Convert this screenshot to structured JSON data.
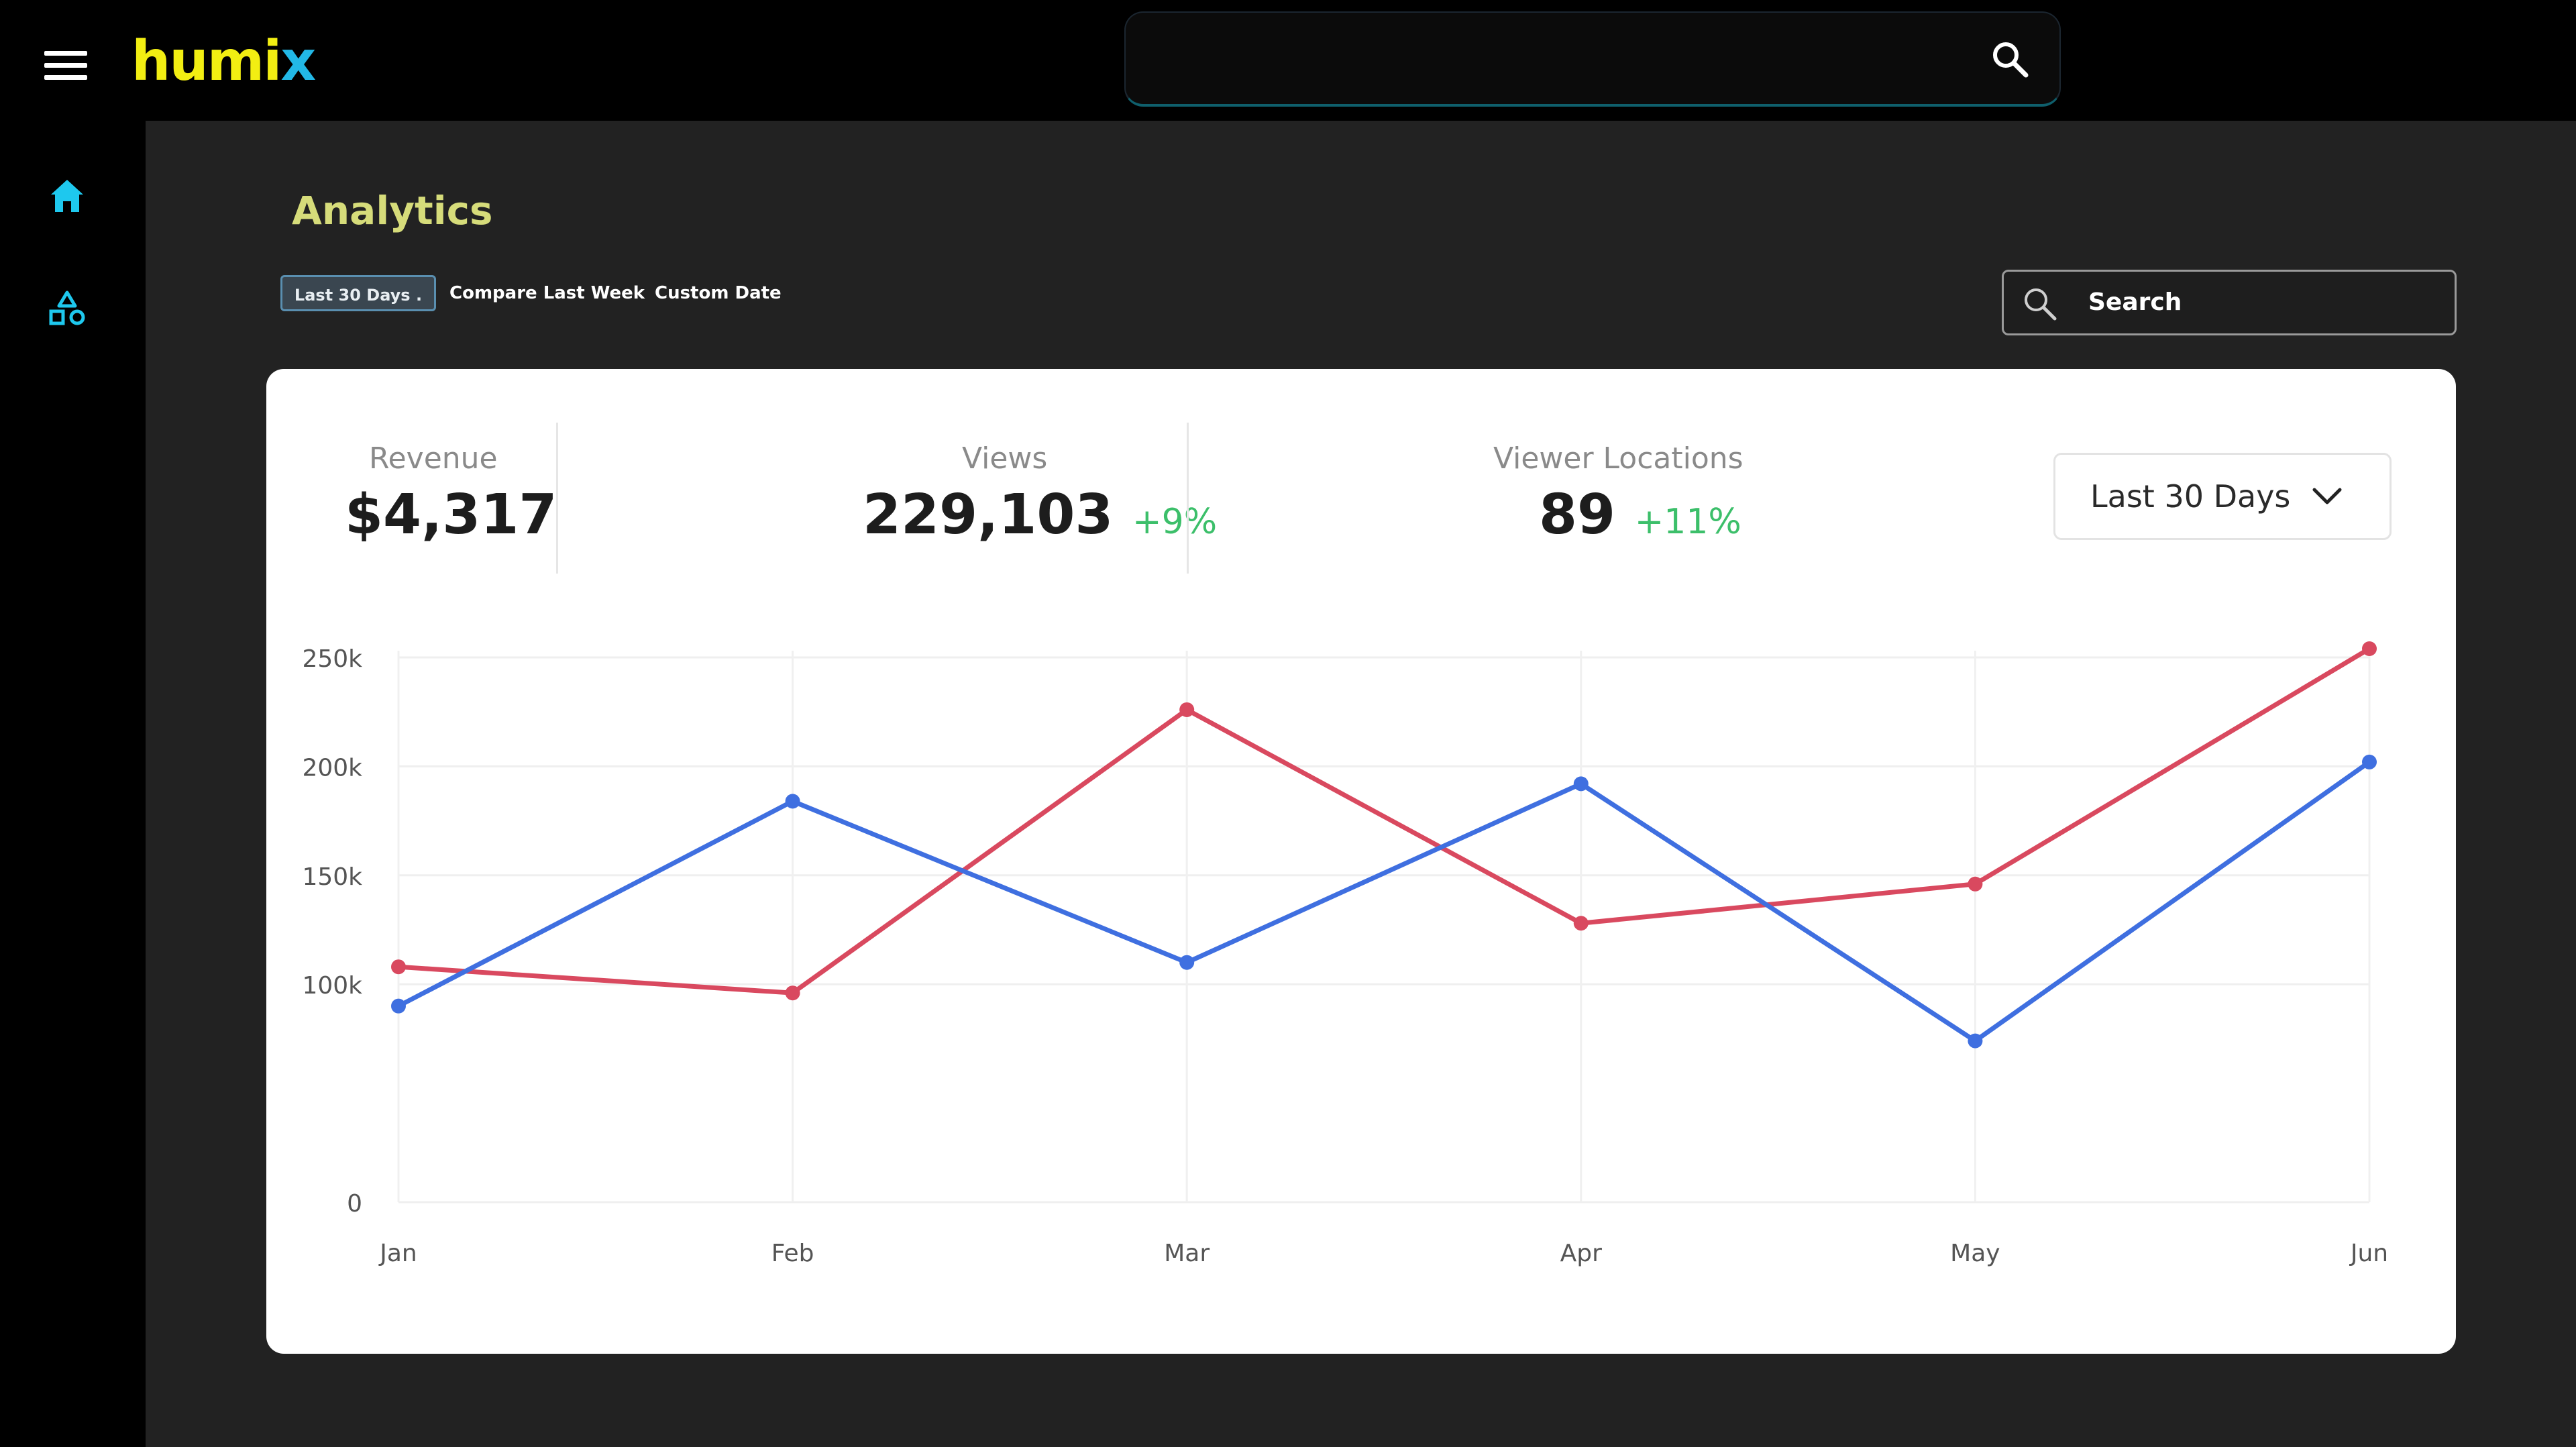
{
  "app": {
    "brand_prefix": "humi",
    "brand_suffix": "x"
  },
  "top_search": {
    "value": "",
    "placeholder": ""
  },
  "sidebar": {
    "items": [
      {
        "icon": "home-icon",
        "color": "#1ec8ee"
      },
      {
        "icon": "shapes-icon",
        "color": "#1ec8ee"
      }
    ]
  },
  "page": {
    "title": "Analytics"
  },
  "filters": {
    "last30": "Last 30 Days .",
    "compare": "Compare Last Week",
    "custom": "Custom Date"
  },
  "panel_search": {
    "label": "Search"
  },
  "stats": {
    "revenue": {
      "label": "Revenue",
      "value": "$4,317"
    },
    "views": {
      "label": "Views",
      "value": "229,103",
      "delta": "+9%"
    },
    "locations": {
      "label": "Viewer Locations",
      "value": "89",
      "delta": "+11%"
    }
  },
  "range_select": {
    "value": "Last 30 Days"
  },
  "colors": {
    "accent": "#f2ee12",
    "cyan": "#1ec8ee",
    "positive": "#3cbf6a",
    "title": "#d6dc7a"
  },
  "chart_data": {
    "type": "line",
    "categories": [
      "Jan",
      "Feb",
      "Mar",
      "Apr",
      "May",
      "Jun"
    ],
    "yticks": [
      "0",
      "100k",
      "150k",
      "200k",
      "250k"
    ],
    "ylim": [
      0,
      250000
    ],
    "grid": true,
    "series": [
      {
        "color": "#d9495f",
        "values": [
          108000,
          96000,
          226000,
          128000,
          146000,
          254000
        ]
      },
      {
        "color": "#3f6fe0",
        "values": [
          90000,
          184000,
          110000,
          192000,
          74000,
          202000
        ]
      }
    ]
  }
}
